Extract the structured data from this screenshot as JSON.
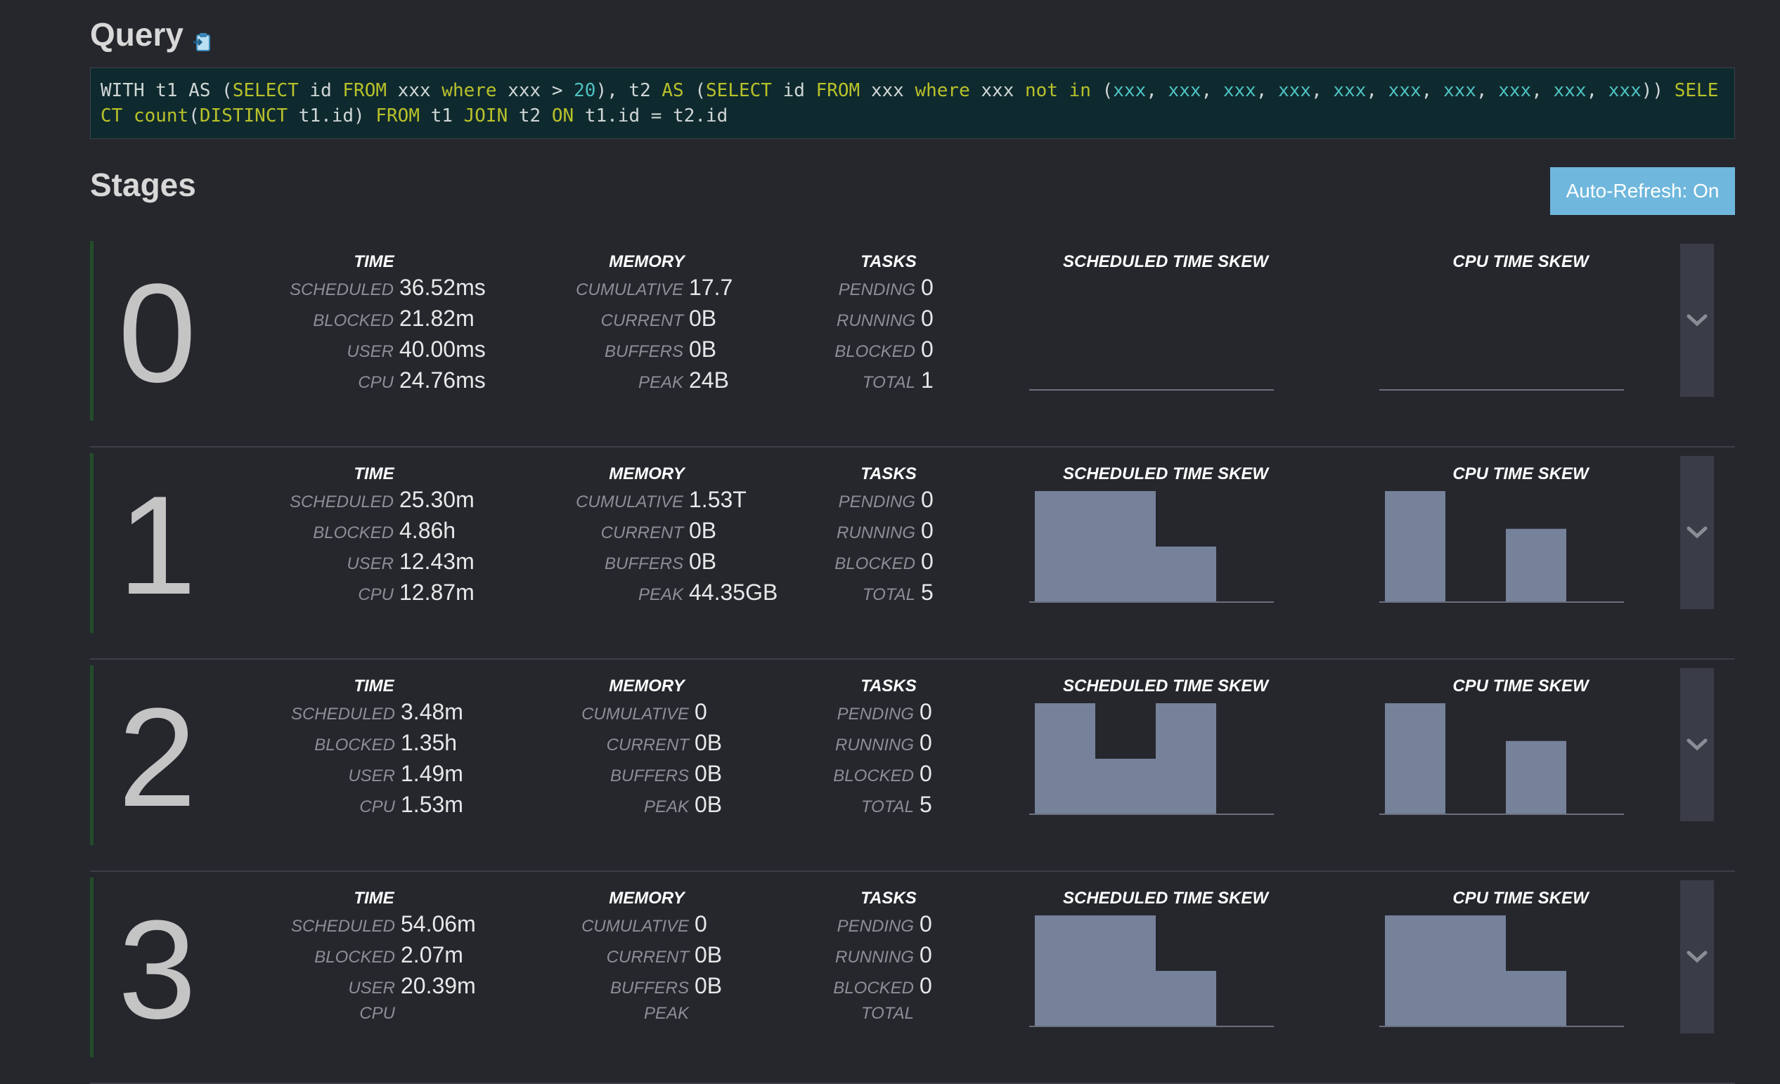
{
  "query": {
    "title": "Query",
    "sql_tokens": [
      [
        "WITH t1 AS (",
        "t"
      ],
      [
        "SELECT",
        "k"
      ],
      [
        " id ",
        "t"
      ],
      [
        "FROM",
        "k"
      ],
      [
        " xxx ",
        "t"
      ],
      [
        "where",
        "k"
      ],
      [
        " xxx > ",
        "t"
      ],
      [
        "20",
        "n"
      ],
      [
        "), t2 ",
        "t"
      ],
      [
        "AS",
        "k"
      ],
      [
        " (",
        "t"
      ],
      [
        "SELECT",
        "k"
      ],
      [
        " id ",
        "t"
      ],
      [
        "FROM",
        "k"
      ],
      [
        " xxx ",
        "t"
      ],
      [
        "where",
        "k"
      ],
      [
        " xxx ",
        "t"
      ],
      [
        "not in",
        "k"
      ],
      [
        " (",
        "t"
      ],
      [
        "xxx",
        "n"
      ],
      [
        ", ",
        "t"
      ],
      [
        "xxx",
        "n"
      ],
      [
        ", ",
        "t"
      ],
      [
        "xxx",
        "n"
      ],
      [
        ", ",
        "t"
      ],
      [
        "xxx",
        "n"
      ],
      [
        ", ",
        "t"
      ],
      [
        "xxx",
        "n"
      ],
      [
        ", ",
        "t"
      ],
      [
        "xxx",
        "n"
      ],
      [
        ", ",
        "t"
      ],
      [
        "xxx",
        "n"
      ],
      [
        ", ",
        "t"
      ],
      [
        "xxx",
        "n"
      ],
      [
        ", ",
        "t"
      ],
      [
        "xxx",
        "n"
      ],
      [
        ", ",
        "t"
      ],
      [
        "xxx",
        "n"
      ],
      [
        ")) ",
        "t"
      ],
      [
        "SELECT",
        "k"
      ],
      [
        " ",
        "t"
      ],
      [
        "count",
        "k"
      ],
      [
        "(",
        "t"
      ],
      [
        "DISTINCT",
        "k"
      ],
      [
        " t1.id) ",
        "t"
      ],
      [
        "FROM",
        "k"
      ],
      [
        " t1 ",
        "t"
      ],
      [
        "JOIN",
        "k"
      ],
      [
        " t2 ",
        "t"
      ],
      [
        "ON",
        "k"
      ],
      [
        " t1.id = t2.id",
        "t"
      ]
    ]
  },
  "stages_title": "Stages",
  "auto_refresh_label": "Auto-Refresh: On",
  "headers": {
    "time": "TIME",
    "memory": "MEMORY",
    "tasks": "TASKS",
    "scheduled_skew": "SCHEDULED TIME SKEW",
    "cpu_skew": "CPU TIME SKEW"
  },
  "labels": {
    "time": [
      "SCHEDULED",
      "BLOCKED",
      "USER",
      "CPU"
    ],
    "memory": [
      "CUMULATIVE",
      "CURRENT",
      "BUFFERS",
      "PEAK"
    ],
    "tasks": [
      "PENDING",
      "RUNNING",
      "BLOCKED",
      "TOTAL"
    ]
  },
  "colors": {
    "bar_fill": "#76829a",
    "keyword": "#b8c12a",
    "literal": "#4ec2c2",
    "button": "#6fb7dc"
  },
  "stages": [
    {
      "id": "0",
      "time": [
        "36.52ms",
        "21.82m",
        "40.00ms",
        "24.76ms"
      ],
      "memory": [
        "17.7",
        "0B",
        "0B",
        "24B"
      ],
      "tasks": [
        "0",
        "0",
        "0",
        "1"
      ],
      "scheduled_skew": [],
      "cpu_skew": []
    },
    {
      "id": "1",
      "time": [
        "25.30m",
        "4.86h",
        "12.43m",
        "12.87m"
      ],
      "memory": [
        "1.53T",
        "0B",
        "0B",
        "44.35GB"
      ],
      "tasks": [
        "0",
        "0",
        "0",
        "5"
      ],
      "scheduled_skew": [
        1.0,
        1.0,
        0.5,
        0
      ],
      "cpu_skew": [
        1.0,
        0,
        0.66,
        0
      ]
    },
    {
      "id": "2",
      "time": [
        "3.48m",
        "1.35h",
        "1.49m",
        "1.53m"
      ],
      "memory": [
        "0",
        "0B",
        "0B",
        "0B"
      ],
      "tasks": [
        "0",
        "0",
        "0",
        "5"
      ],
      "scheduled_skew": [
        1.0,
        0.5,
        1.0,
        0
      ],
      "cpu_skew": [
        1.0,
        0,
        0.66,
        0
      ]
    },
    {
      "id": "3",
      "time": [
        "54.06m",
        "2.07m",
        "20.39m",
        ""
      ],
      "memory": [
        "0",
        "0B",
        "0B",
        ""
      ],
      "tasks": [
        "0",
        "0",
        "0",
        ""
      ],
      "scheduled_skew": [
        1.0,
        1.0,
        0.5,
        0
      ],
      "cpu_skew": [
        1.0,
        1.0,
        0.5,
        0
      ]
    }
  ]
}
